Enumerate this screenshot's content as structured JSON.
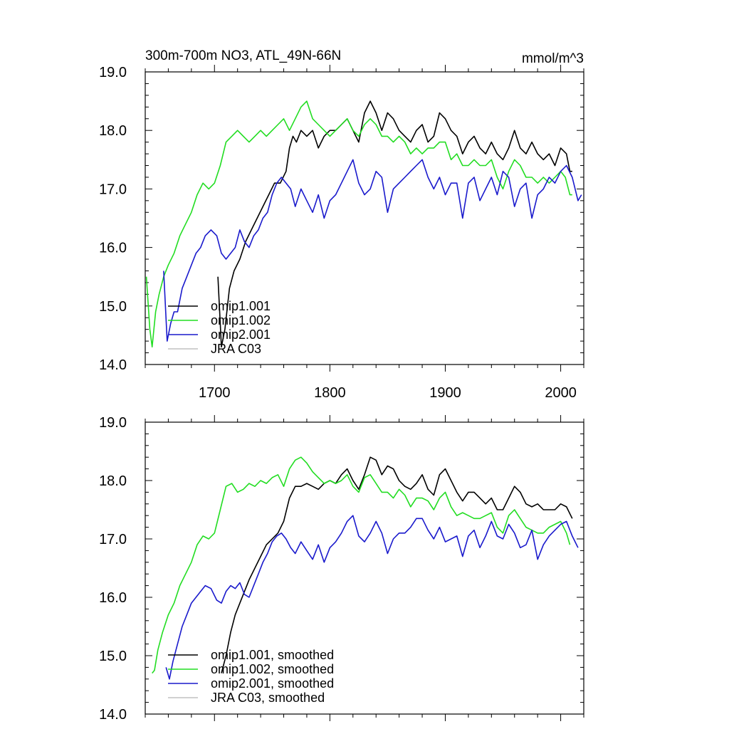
{
  "chart_data": [
    {
      "type": "line",
      "title": "300m-700m NO3, ATL_49N-66N",
      "units": "mmol/m^3",
      "xlim": [
        1640,
        2020
      ],
      "ylim": [
        14.0,
        19.0
      ],
      "x_ticks": [
        1700,
        1800,
        1900,
        2000
      ],
      "x_tick_labels": [
        "1700",
        "1800",
        "1900",
        "2000"
      ],
      "y_ticks": [
        14.0,
        15.0,
        16.0,
        17.0,
        18.0,
        19.0
      ],
      "y_tick_labels": [
        "14.0",
        "15.0",
        "16.0",
        "17.0",
        "18.0",
        "19.0"
      ],
      "legend_position": "lower-left",
      "series": [
        {
          "name": "omip1.001",
          "color": "#000000",
          "x": [
            1703,
            1706,
            1709,
            1713,
            1717,
            1722,
            1727,
            1732,
            1737,
            1742,
            1747,
            1752,
            1757,
            1762,
            1765,
            1768,
            1771,
            1775,
            1780,
            1785,
            1790,
            1795,
            1800,
            1805,
            1810,
            1815,
            1820,
            1825,
            1830,
            1835,
            1840,
            1845,
            1850,
            1855,
            1860,
            1865,
            1870,
            1875,
            1880,
            1885,
            1890,
            1895,
            1900,
            1905,
            1910,
            1915,
            1920,
            1925,
            1930,
            1935,
            1940,
            1945,
            1950,
            1955,
            1960,
            1965,
            1970,
            1975,
            1980,
            1985,
            1990,
            1995,
            2000,
            2005,
            2008,
            2010
          ],
          "values": [
            15.5,
            14.3,
            14.6,
            15.3,
            15.6,
            15.8,
            16.1,
            16.3,
            16.5,
            16.7,
            16.9,
            17.1,
            17.1,
            17.3,
            17.7,
            17.9,
            17.8,
            18.0,
            17.9,
            18.0,
            17.7,
            17.9,
            18.0,
            18.0,
            18.1,
            18.2,
            18.0,
            17.8,
            18.3,
            18.5,
            18.3,
            18.0,
            18.3,
            18.2,
            18.0,
            17.9,
            17.8,
            18.0,
            18.1,
            17.8,
            17.9,
            18.3,
            18.2,
            18.0,
            17.9,
            17.6,
            17.8,
            17.9,
            17.7,
            17.6,
            17.8,
            17.6,
            17.5,
            17.7,
            18.0,
            17.7,
            17.6,
            17.8,
            17.6,
            17.5,
            17.6,
            17.4,
            17.7,
            17.6,
            17.3,
            17.3
          ]
        },
        {
          "name": "omip1.002",
          "color": "#22dd22",
          "x": [
            1641,
            1644,
            1646,
            1649,
            1652,
            1656,
            1660,
            1665,
            1670,
            1675,
            1680,
            1685,
            1690,
            1695,
            1700,
            1705,
            1710,
            1715,
            1720,
            1725,
            1730,
            1735,
            1740,
            1745,
            1750,
            1755,
            1760,
            1765,
            1770,
            1775,
            1780,
            1785,
            1790,
            1795,
            1800,
            1805,
            1810,
            1815,
            1820,
            1825,
            1830,
            1835,
            1840,
            1845,
            1850,
            1855,
            1860,
            1865,
            1870,
            1875,
            1880,
            1885,
            1890,
            1895,
            1900,
            1905,
            1910,
            1915,
            1920,
            1925,
            1930,
            1935,
            1940,
            1945,
            1950,
            1955,
            1960,
            1965,
            1970,
            1975,
            1980,
            1985,
            1990,
            1995,
            2000,
            2004,
            2008,
            2010
          ],
          "values": [
            15.5,
            14.6,
            14.3,
            14.9,
            15.2,
            15.5,
            15.7,
            15.9,
            16.2,
            16.4,
            16.6,
            16.9,
            17.1,
            17.0,
            17.1,
            17.4,
            17.8,
            17.9,
            18.0,
            17.9,
            17.8,
            17.9,
            18.0,
            17.9,
            18.0,
            18.1,
            18.2,
            18.0,
            18.2,
            18.4,
            18.5,
            18.2,
            18.1,
            18.0,
            17.9,
            18.0,
            18.1,
            18.2,
            18.0,
            17.9,
            18.1,
            18.2,
            18.1,
            17.9,
            17.9,
            17.8,
            17.9,
            17.8,
            17.6,
            17.7,
            17.6,
            17.7,
            17.7,
            17.8,
            17.8,
            17.5,
            17.6,
            17.4,
            17.4,
            17.5,
            17.4,
            17.4,
            17.5,
            17.2,
            17.0,
            17.3,
            17.5,
            17.4,
            17.2,
            17.2,
            17.1,
            17.2,
            17.1,
            17.2,
            17.3,
            17.2,
            16.9,
            16.9
          ]
        },
        {
          "name": "omip2.001",
          "color": "#1a1acc",
          "x": [
            1656,
            1659,
            1662,
            1665,
            1668,
            1672,
            1676,
            1680,
            1684,
            1688,
            1692,
            1697,
            1702,
            1706,
            1710,
            1714,
            1718,
            1722,
            1726,
            1730,
            1734,
            1738,
            1742,
            1746,
            1750,
            1754,
            1758,
            1762,
            1766,
            1770,
            1775,
            1780,
            1785,
            1790,
            1795,
            1800,
            1805,
            1810,
            1815,
            1820,
            1825,
            1830,
            1835,
            1840,
            1845,
            1850,
            1855,
            1860,
            1865,
            1870,
            1875,
            1880,
            1885,
            1890,
            1895,
            1900,
            1905,
            1910,
            1915,
            1920,
            1925,
            1930,
            1935,
            1940,
            1945,
            1950,
            1955,
            1960,
            1965,
            1970,
            1975,
            1980,
            1985,
            1990,
            1995,
            2000,
            2005,
            2010,
            2015,
            2018
          ],
          "values": [
            15.6,
            14.4,
            14.7,
            14.9,
            14.9,
            15.3,
            15.5,
            15.7,
            15.9,
            16.0,
            16.2,
            16.3,
            16.2,
            15.9,
            15.8,
            15.9,
            16.0,
            16.3,
            16.1,
            16.0,
            16.2,
            16.3,
            16.5,
            16.6,
            16.9,
            17.1,
            17.2,
            17.1,
            17.0,
            16.7,
            17.0,
            16.8,
            16.6,
            16.9,
            16.5,
            16.8,
            16.9,
            17.1,
            17.3,
            17.5,
            17.1,
            16.9,
            17.0,
            17.3,
            17.2,
            16.6,
            17.0,
            17.1,
            17.2,
            17.3,
            17.4,
            17.5,
            17.2,
            17.0,
            17.2,
            16.9,
            17.1,
            17.1,
            16.5,
            17.1,
            17.2,
            16.8,
            17.0,
            17.2,
            16.9,
            17.3,
            17.2,
            16.7,
            17.0,
            17.1,
            16.5,
            16.9,
            17.0,
            17.2,
            17.1,
            17.3,
            17.4,
            17.2,
            16.8,
            16.9
          ]
        },
        {
          "name": "JRA C03",
          "color": "#c0c0c0",
          "x": [],
          "values": []
        }
      ]
    },
    {
      "type": "line",
      "title": "",
      "xlim": [
        1640,
        2020
      ],
      "ylim": [
        14.0,
        19.0
      ],
      "x_ticks": [
        1700,
        1800,
        1900,
        2000
      ],
      "y_ticks": [
        14.0,
        15.0,
        16.0,
        17.0,
        18.0,
        19.0
      ],
      "y_tick_labels": [
        "14.0",
        "15.0",
        "16.0",
        "17.0",
        "18.0",
        "19.0"
      ],
      "legend_position": "lower-left",
      "series": [
        {
          "name": "omip1.001, smoothed",
          "color": "#000000",
          "x": [
            1706,
            1710,
            1714,
            1718,
            1722,
            1726,
            1730,
            1735,
            1740,
            1745,
            1750,
            1755,
            1760,
            1765,
            1770,
            1775,
            1780,
            1785,
            1790,
            1795,
            1800,
            1805,
            1810,
            1815,
            1820,
            1825,
            1830,
            1835,
            1840,
            1845,
            1850,
            1855,
            1860,
            1865,
            1870,
            1875,
            1880,
            1885,
            1890,
            1895,
            1900,
            1905,
            1910,
            1915,
            1920,
            1925,
            1930,
            1935,
            1940,
            1945,
            1950,
            1955,
            1960,
            1965,
            1970,
            1975,
            1980,
            1985,
            1990,
            1995,
            2000,
            2005,
            2010
          ],
          "values": [
            14.7,
            15.0,
            15.4,
            15.7,
            15.9,
            16.1,
            16.3,
            16.5,
            16.7,
            16.9,
            17.0,
            17.1,
            17.3,
            17.7,
            17.9,
            17.9,
            17.95,
            17.9,
            17.85,
            17.95,
            18.0,
            17.95,
            18.1,
            18.2,
            18.0,
            17.85,
            18.1,
            18.4,
            18.35,
            18.1,
            18.25,
            18.2,
            18.0,
            17.9,
            17.85,
            17.95,
            18.1,
            17.85,
            17.75,
            18.1,
            18.2,
            18.0,
            17.8,
            17.65,
            17.8,
            17.8,
            17.7,
            17.6,
            17.7,
            17.5,
            17.5,
            17.7,
            17.9,
            17.8,
            17.6,
            17.55,
            17.6,
            17.5,
            17.5,
            17.5,
            17.6,
            17.55,
            17.35
          ]
        },
        {
          "name": "omip1.002, smoothed",
          "color": "#22dd22",
          "x": [
            1646,
            1648,
            1651,
            1655,
            1660,
            1665,
            1670,
            1675,
            1680,
            1685,
            1690,
            1695,
            1700,
            1705,
            1710,
            1715,
            1720,
            1725,
            1730,
            1735,
            1740,
            1745,
            1750,
            1755,
            1760,
            1765,
            1770,
            1775,
            1780,
            1785,
            1790,
            1795,
            1800,
            1805,
            1810,
            1815,
            1820,
            1825,
            1830,
            1835,
            1840,
            1845,
            1850,
            1855,
            1860,
            1865,
            1870,
            1875,
            1880,
            1885,
            1890,
            1895,
            1900,
            1905,
            1910,
            1915,
            1920,
            1925,
            1930,
            1935,
            1940,
            1945,
            1950,
            1955,
            1960,
            1965,
            1970,
            1975,
            1980,
            1985,
            1990,
            1995,
            2000,
            2005,
            2008
          ],
          "values": [
            14.7,
            14.75,
            15.1,
            15.4,
            15.7,
            15.9,
            16.2,
            16.4,
            16.6,
            16.9,
            17.05,
            17.0,
            17.1,
            17.5,
            17.9,
            17.95,
            17.8,
            17.85,
            17.95,
            17.9,
            18.0,
            17.95,
            18.05,
            18.1,
            17.9,
            18.2,
            18.35,
            18.4,
            18.3,
            18.15,
            18.05,
            17.95,
            18.0,
            17.95,
            18.0,
            18.1,
            17.9,
            17.8,
            18.05,
            18.1,
            17.95,
            17.8,
            17.8,
            17.7,
            17.85,
            17.75,
            17.55,
            17.7,
            17.7,
            17.65,
            17.5,
            17.7,
            17.8,
            17.55,
            17.4,
            17.45,
            17.4,
            17.35,
            17.35,
            17.4,
            17.45,
            17.2,
            17.1,
            17.4,
            17.5,
            17.35,
            17.2,
            17.15,
            17.1,
            17.1,
            17.2,
            17.25,
            17.3,
            17.1,
            16.9
          ]
        },
        {
          "name": "omip2.001, smoothed",
          "color": "#1a1acc",
          "x": [
            1658,
            1661,
            1664,
            1668,
            1672,
            1676,
            1680,
            1684,
            1688,
            1692,
            1697,
            1702,
            1706,
            1710,
            1714,
            1718,
            1722,
            1726,
            1730,
            1734,
            1738,
            1742,
            1746,
            1750,
            1754,
            1758,
            1762,
            1766,
            1770,
            1775,
            1780,
            1785,
            1790,
            1795,
            1800,
            1805,
            1810,
            1815,
            1820,
            1825,
            1830,
            1835,
            1840,
            1845,
            1850,
            1855,
            1860,
            1865,
            1870,
            1875,
            1880,
            1885,
            1890,
            1895,
            1900,
            1905,
            1910,
            1915,
            1920,
            1925,
            1930,
            1935,
            1940,
            1945,
            1950,
            1955,
            1960,
            1965,
            1970,
            1975,
            1980,
            1985,
            1990,
            1995,
            2000,
            2005,
            2010,
            2015
          ],
          "values": [
            14.8,
            14.6,
            14.9,
            15.2,
            15.5,
            15.7,
            15.9,
            16.0,
            16.1,
            16.2,
            16.15,
            15.95,
            15.9,
            16.1,
            16.2,
            16.15,
            16.25,
            16.05,
            16.0,
            16.2,
            16.4,
            16.6,
            16.75,
            16.95,
            17.05,
            17.1,
            17.0,
            16.85,
            16.75,
            16.95,
            16.8,
            16.65,
            16.9,
            16.6,
            16.85,
            16.95,
            17.1,
            17.3,
            17.4,
            17.05,
            16.95,
            17.1,
            17.3,
            17.1,
            16.75,
            17.0,
            17.1,
            17.1,
            17.2,
            17.35,
            17.35,
            17.15,
            17.0,
            17.2,
            16.95,
            17.0,
            17.05,
            16.7,
            17.05,
            17.15,
            16.85,
            17.05,
            17.3,
            17.05,
            17.0,
            17.25,
            17.1,
            16.85,
            16.9,
            17.15,
            16.65,
            16.9,
            17.05,
            17.15,
            17.25,
            17.3,
            17.05,
            16.85
          ]
        },
        {
          "name": "JRA C03, smoothed",
          "color": "#c0c0c0",
          "x": [],
          "values": []
        }
      ]
    }
  ]
}
